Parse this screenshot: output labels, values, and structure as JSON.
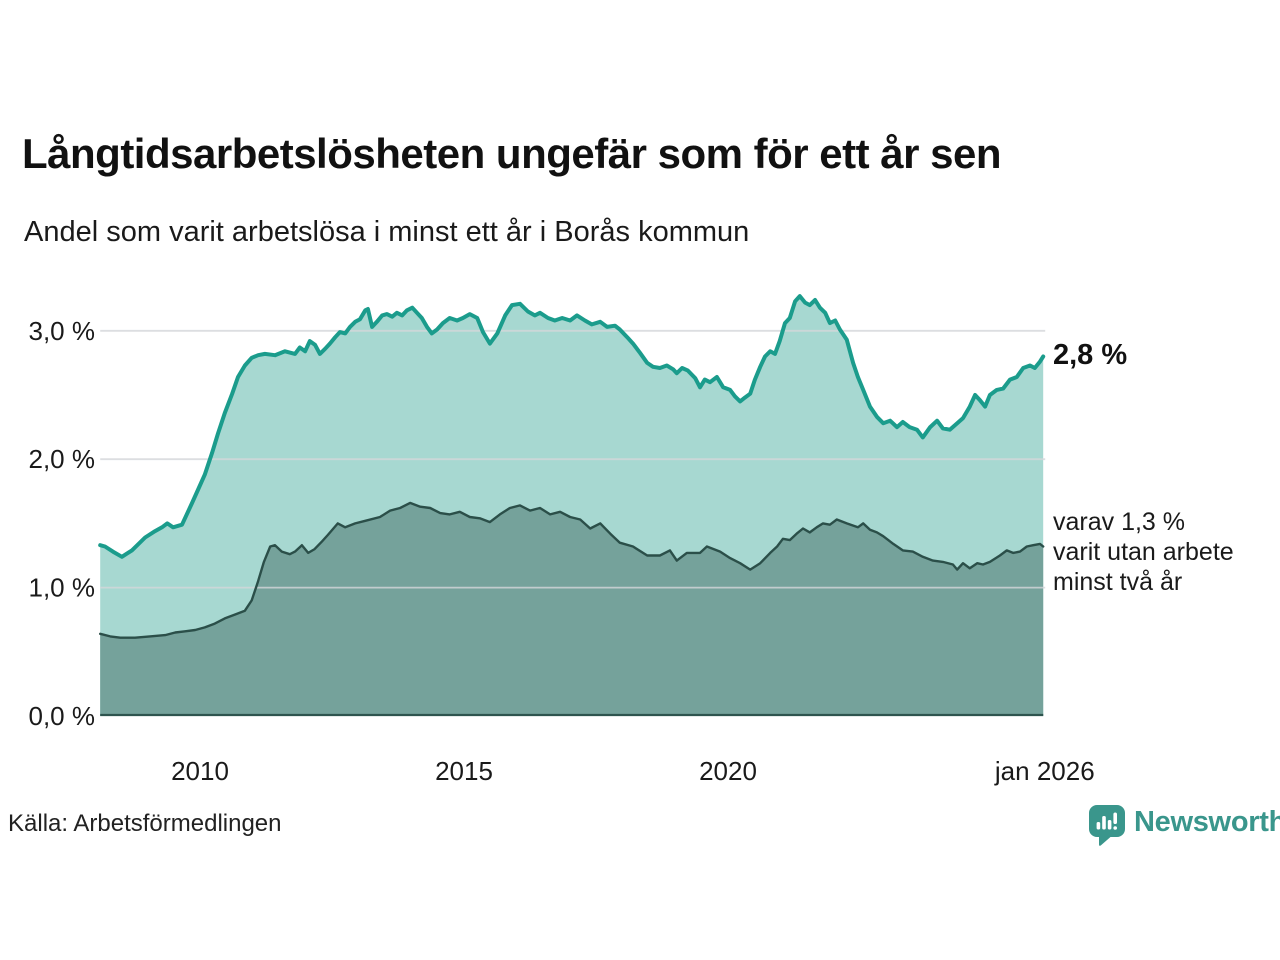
{
  "header": {
    "title": "Långtidsarbetslösheten ungefär som för ett år sen",
    "subtitle": "Andel som varit arbetslösa i minst ett år i Borås kommun"
  },
  "annotations": {
    "one_year_end_label": "2,8 %",
    "two_year_lines": [
      "varav 1,3 %",
      "varit utan arbete",
      "minst två år"
    ]
  },
  "footer": {
    "source": "Källa: Arbetsförmedlingen",
    "brand": "Newsworthy",
    "brand_color": "#3a968c"
  },
  "icons": {
    "logo": "bar-chart-speech-bubble-icon"
  },
  "chart_data": {
    "type": "area",
    "title": "Långtidsarbetslösheten ungefär som för ett år sen",
    "subtitle": "Andel som varit arbetslösa i minst ett år i Borås kommun",
    "unit": "%",
    "grid": true,
    "legend_position": "right-annotations",
    "x_axis": {
      "range_years": [
        2008.1,
        2026.0
      ],
      "ticks": [
        {
          "year": 2010,
          "label": "2010"
        },
        {
          "year": 2015,
          "label": "2015"
        },
        {
          "year": 2020,
          "label": "2020"
        },
        {
          "year": 2026,
          "label": "jan 2026"
        }
      ]
    },
    "y_axis": {
      "range": [
        0,
        3.4
      ],
      "grid_values": [
        1,
        2,
        3
      ],
      "ticks": [
        {
          "value": 0,
          "label": "0,0 %"
        },
        {
          "value": 1,
          "label": "1,0 %"
        },
        {
          "value": 2,
          "label": "2,0 %"
        },
        {
          "value": 3,
          "label": "3,0 %"
        }
      ]
    },
    "colors": {
      "gridline": "#d4d7da",
      "axis_text": "#1a1a1a",
      "baseline": "#2e544e"
    },
    "series": [
      {
        "name": "Arbetslösa minst ett år",
        "end_value": 2.8,
        "end_label": "2,8 %",
        "line_color": "#1b9c8c",
        "fill_color": "#a7d8d1",
        "line_width": 4,
        "points": [
          [
            2008.11,
            1.33
          ],
          [
            2008.2,
            1.32
          ],
          [
            2008.35,
            1.28
          ],
          [
            2008.52,
            1.24
          ],
          [
            2008.71,
            1.29
          ],
          [
            2008.96,
            1.39
          ],
          [
            2009.15,
            1.44
          ],
          [
            2009.28,
            1.47
          ],
          [
            2009.38,
            1.5
          ],
          [
            2009.49,
            1.47
          ],
          [
            2009.66,
            1.49
          ],
          [
            2009.85,
            1.66
          ],
          [
            2009.96,
            1.76
          ],
          [
            2010.09,
            1.88
          ],
          [
            2010.23,
            2.05
          ],
          [
            2010.34,
            2.2
          ],
          [
            2010.47,
            2.36
          ],
          [
            2010.61,
            2.51
          ],
          [
            2010.72,
            2.64
          ],
          [
            2010.85,
            2.73
          ],
          [
            2010.98,
            2.79
          ],
          [
            2011.1,
            2.81
          ],
          [
            2011.23,
            2.82
          ],
          [
            2011.42,
            2.81
          ],
          [
            2011.61,
            2.84
          ],
          [
            2011.8,
            2.82
          ],
          [
            2011.89,
            2.87
          ],
          [
            2011.99,
            2.84
          ],
          [
            2012.08,
            2.92
          ],
          [
            2012.18,
            2.89
          ],
          [
            2012.27,
            2.82
          ],
          [
            2012.37,
            2.86
          ],
          [
            2012.46,
            2.9
          ],
          [
            2012.56,
            2.95
          ],
          [
            2012.65,
            2.99
          ],
          [
            2012.75,
            2.98
          ],
          [
            2012.84,
            3.03
          ],
          [
            2012.94,
            3.07
          ],
          [
            2013.03,
            3.09
          ],
          [
            2013.13,
            3.16
          ],
          [
            2013.18,
            3.17
          ],
          [
            2013.26,
            3.03
          ],
          [
            2013.35,
            3.07
          ],
          [
            2013.45,
            3.12
          ],
          [
            2013.54,
            3.13
          ],
          [
            2013.64,
            3.11
          ],
          [
            2013.73,
            3.14
          ],
          [
            2013.83,
            3.12
          ],
          [
            2013.92,
            3.16
          ],
          [
            2014.02,
            3.18
          ],
          [
            2014.11,
            3.14
          ],
          [
            2014.2,
            3.1
          ],
          [
            2014.3,
            3.03
          ],
          [
            2014.39,
            2.98
          ],
          [
            2014.49,
            3.01
          ],
          [
            2014.6,
            3.06
          ],
          [
            2014.73,
            3.1
          ],
          [
            2014.87,
            3.08
          ],
          [
            2014.98,
            3.1
          ],
          [
            2015.11,
            3.13
          ],
          [
            2015.25,
            3.1
          ],
          [
            2015.36,
            2.99
          ],
          [
            2015.49,
            2.9
          ],
          [
            2015.63,
            2.98
          ],
          [
            2015.78,
            3.12
          ],
          [
            2015.91,
            3.2
          ],
          [
            2016.06,
            3.21
          ],
          [
            2016.21,
            3.15
          ],
          [
            2016.34,
            3.12
          ],
          [
            2016.44,
            3.14
          ],
          [
            2016.59,
            3.1
          ],
          [
            2016.72,
            3.08
          ],
          [
            2016.86,
            3.1
          ],
          [
            2017.01,
            3.08
          ],
          [
            2017.14,
            3.12
          ],
          [
            2017.29,
            3.08
          ],
          [
            2017.42,
            3.05
          ],
          [
            2017.58,
            3.07
          ],
          [
            2017.71,
            3.03
          ],
          [
            2017.86,
            3.04
          ],
          [
            2017.95,
            3.01
          ],
          [
            2018.09,
            2.95
          ],
          [
            2018.2,
            2.9
          ],
          [
            2018.33,
            2.83
          ],
          [
            2018.47,
            2.75
          ],
          [
            2018.58,
            2.72
          ],
          [
            2018.71,
            2.71
          ],
          [
            2018.84,
            2.73
          ],
          [
            2018.96,
            2.7
          ],
          [
            2019.03,
            2.67
          ],
          [
            2019.13,
            2.71
          ],
          [
            2019.24,
            2.69
          ],
          [
            2019.38,
            2.63
          ],
          [
            2019.47,
            2.56
          ],
          [
            2019.56,
            2.62
          ],
          [
            2019.66,
            2.6
          ],
          [
            2019.79,
            2.64
          ],
          [
            2019.91,
            2.56
          ],
          [
            2020.04,
            2.54
          ],
          [
            2020.13,
            2.49
          ],
          [
            2020.23,
            2.45
          ],
          [
            2020.32,
            2.48
          ],
          [
            2020.42,
            2.51
          ],
          [
            2020.51,
            2.62
          ],
          [
            2020.61,
            2.72
          ],
          [
            2020.7,
            2.8
          ],
          [
            2020.8,
            2.84
          ],
          [
            2020.89,
            2.82
          ],
          [
            2020.98,
            2.92
          ],
          [
            2021.08,
            3.06
          ],
          [
            2021.17,
            3.1
          ],
          [
            2021.27,
            3.23
          ],
          [
            2021.36,
            3.27
          ],
          [
            2021.46,
            3.22
          ],
          [
            2021.55,
            3.2
          ],
          [
            2021.65,
            3.24
          ],
          [
            2021.74,
            3.18
          ],
          [
            2021.84,
            3.14
          ],
          [
            2021.93,
            3.06
          ],
          [
            2022.03,
            3.08
          ],
          [
            2022.12,
            3.01
          ],
          [
            2022.25,
            2.93
          ],
          [
            2022.37,
            2.75
          ],
          [
            2022.46,
            2.64
          ],
          [
            2022.56,
            2.54
          ],
          [
            2022.69,
            2.41
          ],
          [
            2022.82,
            2.33
          ],
          [
            2022.94,
            2.28
          ],
          [
            2023.07,
            2.3
          ],
          [
            2023.2,
            2.25
          ],
          [
            2023.31,
            2.29
          ],
          [
            2023.44,
            2.25
          ],
          [
            2023.58,
            2.23
          ],
          [
            2023.69,
            2.17
          ],
          [
            2023.83,
            2.25
          ],
          [
            2023.96,
            2.3
          ],
          [
            2024.07,
            2.24
          ],
          [
            2024.2,
            2.23
          ],
          [
            2024.34,
            2.28
          ],
          [
            2024.45,
            2.32
          ],
          [
            2024.58,
            2.41
          ],
          [
            2024.68,
            2.5
          ],
          [
            2024.77,
            2.46
          ],
          [
            2024.87,
            2.41
          ],
          [
            2024.96,
            2.5
          ],
          [
            2025.09,
            2.54
          ],
          [
            2025.21,
            2.55
          ],
          [
            2025.34,
            2.62
          ],
          [
            2025.47,
            2.64
          ],
          [
            2025.59,
            2.71
          ],
          [
            2025.72,
            2.73
          ],
          [
            2025.81,
            2.71
          ],
          [
            2025.91,
            2.76
          ],
          [
            2025.97,
            2.8
          ]
        ]
      },
      {
        "name": "Varav arbetslösa minst två år",
        "end_value": 1.3,
        "end_label": "varav 1,3 % varit utan arbete minst två år",
        "line_color": "#2b4f49",
        "fill_color": "#75a29b",
        "line_width": 2.4,
        "points": [
          [
            2008.11,
            0.64
          ],
          [
            2008.3,
            0.62
          ],
          [
            2008.49,
            0.61
          ],
          [
            2008.77,
            0.61
          ],
          [
            2009.05,
            0.62
          ],
          [
            2009.34,
            0.63
          ],
          [
            2009.53,
            0.65
          ],
          [
            2009.72,
            0.66
          ],
          [
            2009.91,
            0.67
          ],
          [
            2010.09,
            0.69
          ],
          [
            2010.28,
            0.72
          ],
          [
            2010.47,
            0.76
          ],
          [
            2010.66,
            0.79
          ],
          [
            2010.85,
            0.82
          ],
          [
            2010.98,
            0.9
          ],
          [
            2011.1,
            1.05
          ],
          [
            2011.21,
            1.2
          ],
          [
            2011.33,
            1.32
          ],
          [
            2011.42,
            1.33
          ],
          [
            2011.55,
            1.28
          ],
          [
            2011.7,
            1.26
          ],
          [
            2011.8,
            1.28
          ],
          [
            2011.93,
            1.33
          ],
          [
            2012.05,
            1.27
          ],
          [
            2012.17,
            1.3
          ],
          [
            2012.31,
            1.36
          ],
          [
            2012.42,
            1.41
          ],
          [
            2012.61,
            1.5
          ],
          [
            2012.75,
            1.47
          ],
          [
            2012.94,
            1.5
          ],
          [
            2013.13,
            1.52
          ],
          [
            2013.41,
            1.55
          ],
          [
            2013.6,
            1.6
          ],
          [
            2013.79,
            1.62
          ],
          [
            2013.98,
            1.66
          ],
          [
            2014.17,
            1.63
          ],
          [
            2014.36,
            1.62
          ],
          [
            2014.55,
            1.58
          ],
          [
            2014.73,
            1.57
          ],
          [
            2014.92,
            1.59
          ],
          [
            2015.11,
            1.55
          ],
          [
            2015.3,
            1.54
          ],
          [
            2015.49,
            1.51
          ],
          [
            2015.68,
            1.57
          ],
          [
            2015.87,
            1.62
          ],
          [
            2016.06,
            1.64
          ],
          [
            2016.25,
            1.6
          ],
          [
            2016.44,
            1.62
          ],
          [
            2016.63,
            1.57
          ],
          [
            2016.82,
            1.59
          ],
          [
            2017.01,
            1.55
          ],
          [
            2017.2,
            1.53
          ],
          [
            2017.39,
            1.46
          ],
          [
            2017.58,
            1.5
          ],
          [
            2017.77,
            1.42
          ],
          [
            2017.95,
            1.35
          ],
          [
            2018.2,
            1.32
          ],
          [
            2018.47,
            1.25
          ],
          [
            2018.71,
            1.25
          ],
          [
            2018.9,
            1.29
          ],
          [
            2019.03,
            1.21
          ],
          [
            2019.22,
            1.27
          ],
          [
            2019.47,
            1.27
          ],
          [
            2019.6,
            1.32
          ],
          [
            2019.85,
            1.28
          ],
          [
            2020.04,
            1.23
          ],
          [
            2020.23,
            1.19
          ],
          [
            2020.42,
            1.14
          ],
          [
            2020.61,
            1.19
          ],
          [
            2020.8,
            1.27
          ],
          [
            2020.93,
            1.32
          ],
          [
            2021.04,
            1.38
          ],
          [
            2021.17,
            1.37
          ],
          [
            2021.3,
            1.42
          ],
          [
            2021.42,
            1.46
          ],
          [
            2021.55,
            1.43
          ],
          [
            2021.68,
            1.47
          ],
          [
            2021.8,
            1.5
          ],
          [
            2021.93,
            1.49
          ],
          [
            2022.06,
            1.53
          ],
          [
            2022.25,
            1.5
          ],
          [
            2022.46,
            1.47
          ],
          [
            2022.56,
            1.5
          ],
          [
            2022.69,
            1.45
          ],
          [
            2022.82,
            1.43
          ],
          [
            2022.94,
            1.4
          ],
          [
            2023.13,
            1.34
          ],
          [
            2023.31,
            1.29
          ],
          [
            2023.5,
            1.28
          ],
          [
            2023.69,
            1.24
          ],
          [
            2023.88,
            1.21
          ],
          [
            2024.07,
            1.2
          ],
          [
            2024.26,
            1.18
          ],
          [
            2024.34,
            1.14
          ],
          [
            2024.45,
            1.19
          ],
          [
            2024.58,
            1.15
          ],
          [
            2024.72,
            1.19
          ],
          [
            2024.83,
            1.18
          ],
          [
            2024.96,
            1.2
          ],
          [
            2025.15,
            1.25
          ],
          [
            2025.28,
            1.29
          ],
          [
            2025.4,
            1.27
          ],
          [
            2025.53,
            1.28
          ],
          [
            2025.66,
            1.32
          ],
          [
            2025.78,
            1.33
          ],
          [
            2025.91,
            1.34
          ],
          [
            2025.97,
            1.32
          ]
        ]
      }
    ]
  }
}
